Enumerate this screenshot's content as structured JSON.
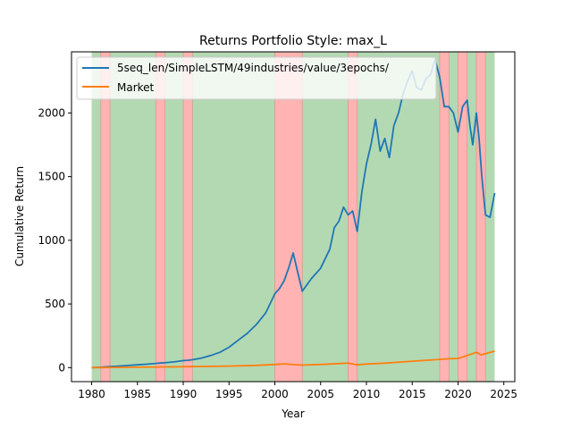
{
  "chart_data": {
    "type": "line",
    "title": "Returns Portfolio Style: max_L",
    "xlabel": "Year",
    "ylabel": "Cumulative Return",
    "xlim": [
      1977.8,
      2026.2
    ],
    "ylim": [
      -110,
      2480
    ],
    "x_ticks": [
      1980,
      1985,
      1990,
      1995,
      2000,
      2005,
      2010,
      2015,
      2020,
      2025
    ],
    "y_ticks": [
      0,
      500,
      1000,
      1500,
      2000
    ],
    "grid": false,
    "legend_position": "top-left",
    "regime_bands": {
      "green_span": [
        1980,
        2024
      ],
      "red_spans": [
        [
          1981,
          1982
        ],
        [
          1987,
          1988
        ],
        [
          1990,
          1991
        ],
        [
          2000,
          2003
        ],
        [
          2008,
          2009
        ],
        [
          2018,
          2019
        ],
        [
          2020,
          2021
        ],
        [
          2022,
          2023
        ]
      ],
      "green_color": "#b3d9b3",
      "red_color": "#ffb3b3"
    },
    "series": [
      {
        "name": "5seq_len/SimpleLSTM/49industries/value/3epochs/",
        "color": "#1f77b4",
        "x": [
          1980,
          1981,
          1982,
          1983,
          1984,
          1985,
          1986,
          1987,
          1987.5,
          1988,
          1989,
          1990,
          1990.5,
          1991,
          1992,
          1993,
          1994,
          1995,
          1996,
          1997,
          1998,
          1999,
          2000,
          2000.5,
          2001,
          2001.5,
          2002,
          2002.5,
          2003,
          2004,
          2005,
          2006,
          2006.5,
          2007,
          2007.5,
          2008,
          2008.5,
          2009,
          2009.5,
          2010,
          2010.5,
          2011,
          2011.5,
          2012,
          2012.5,
          2013,
          2013.5,
          2014,
          2014.5,
          2015,
          2015.5,
          2016,
          2016.5,
          2017,
          2017.5,
          2018,
          2018.5,
          2019,
          2019.5,
          2020,
          2020.5,
          2021,
          2021.3,
          2021.6,
          2022,
          2022.3,
          2022.6,
          2023,
          2023.5,
          2024
        ],
        "y": [
          0,
          3,
          8,
          12,
          17,
          22,
          27,
          33,
          36,
          38,
          45,
          55,
          58,
          62,
          75,
          95,
          120,
          160,
          215,
          270,
          340,
          430,
          580,
          620,
          680,
          780,
          900,
          750,
          600,
          700,
          780,
          930,
          1100,
          1150,
          1260,
          1200,
          1230,
          1070,
          1380,
          1600,
          1750,
          1950,
          1700,
          1800,
          1650,
          1900,
          2000,
          2150,
          2250,
          2330,
          2200,
          2180,
          2270,
          2300,
          2420,
          2280,
          2050,
          2050,
          2000,
          1850,
          2050,
          2100,
          1900,
          1750,
          2000,
          1800,
          1500,
          1200,
          1180,
          1370
        ]
      },
      {
        "name": "Market",
        "color": "#ff7f0e",
        "x": [
          1980,
          1985,
          1990,
          1995,
          1998,
          2000,
          2001,
          2002,
          2003,
          2005,
          2007,
          2008,
          2009,
          2010,
          2012,
          2014,
          2016,
          2018,
          2019,
          2020,
          2021,
          2022,
          2022.5,
          2023,
          2024
        ],
        "y": [
          0,
          3,
          7,
          12,
          18,
          25,
          30,
          24,
          20,
          25,
          32,
          35,
          22,
          28,
          35,
          45,
          55,
          65,
          70,
          72,
          95,
          120,
          100,
          110,
          130
        ]
      }
    ]
  }
}
